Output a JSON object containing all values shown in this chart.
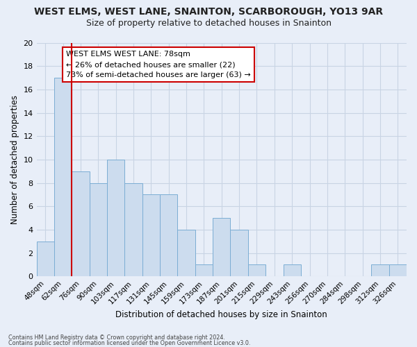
{
  "title1": "WEST ELMS, WEST LANE, SNAINTON, SCARBOROUGH, YO13 9AR",
  "title2": "Size of property relative to detached houses in Snainton",
  "xlabel": "Distribution of detached houses by size in Snainton",
  "ylabel": "Number of detached properties",
  "categories": [
    "48sqm",
    "62sqm",
    "76sqm",
    "90sqm",
    "103sqm",
    "117sqm",
    "131sqm",
    "145sqm",
    "159sqm",
    "173sqm",
    "187sqm",
    "201sqm",
    "215sqm",
    "229sqm",
    "243sqm",
    "256sqm",
    "270sqm",
    "284sqm",
    "298sqm",
    "312sqm",
    "326sqm"
  ],
  "values": [
    3,
    17,
    9,
    8,
    10,
    8,
    7,
    7,
    4,
    1,
    5,
    4,
    1,
    0,
    1,
    0,
    0,
    0,
    0,
    1,
    1
  ],
  "bar_color": "#ccdcee",
  "bar_edge_color": "#7badd4",
  "marker_index": 2,
  "marker_color": "#cc0000",
  "ylim": [
    0,
    20
  ],
  "yticks": [
    0,
    2,
    4,
    6,
    8,
    10,
    12,
    14,
    16,
    18,
    20
  ],
  "ann_line1": "WEST ELMS WEST LANE: 78sqm",
  "ann_line2": "← 26% of detached houses are smaller (22)",
  "ann_line3": "73% of semi-detached houses are larger (63) →",
  "annotation_box_color": "#ffffff",
  "annotation_box_edge": "#cc0000",
  "grid_color": "#c8d4e4",
  "bg_color": "#e8eef8",
  "title1_fontsize": 10,
  "title2_fontsize": 9,
  "footnote1": "Contains HM Land Registry data © Crown copyright and database right 2024.",
  "footnote2": "Contains public sector information licensed under the Open Government Licence v3.0."
}
